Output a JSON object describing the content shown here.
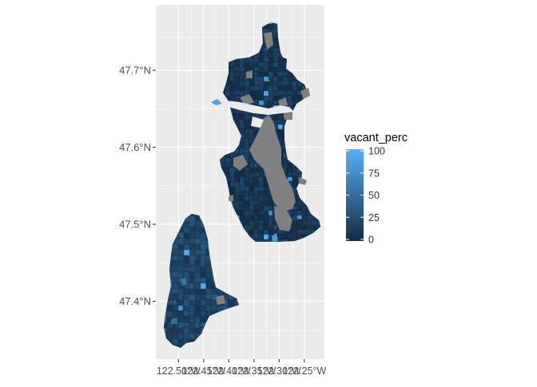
{
  "map": {
    "axes": {
      "x_tick_labels": [
        "122.50°W",
        "122.45°W",
        "122.40°W",
        "122.35°W",
        "122.30°W",
        "122.25°W"
      ],
      "x_tick_values": [
        -122.5,
        -122.45,
        -122.4,
        -122.35,
        -122.3,
        -122.25
      ],
      "y_tick_labels": [
        "47.4°N",
        "47.5°N",
        "47.6°N",
        "47.7°N"
      ],
      "y_tick_values": [
        47.4,
        47.5,
        47.6,
        47.7
      ],
      "xlim": [
        -122.545,
        -122.21
      ],
      "ylim": [
        47.325,
        47.785
      ],
      "grid": true
    },
    "legend": {
      "title": "vacant_perc",
      "breaks": [
        0,
        25,
        50,
        75,
        100
      ],
      "break_labels": [
        "0",
        "25",
        "50",
        "75",
        "100"
      ],
      "limits": [
        0,
        100
      ],
      "position": "right",
      "gradient": {
        "low": "#132B43",
        "high": "#56B1F7"
      }
    },
    "colors": {
      "panel_background": "#EBEBEB",
      "grid_line": "#FFFFFF",
      "na_fill": "#808080",
      "tick_label": "#4D4D4D",
      "legend_title": "#000000"
    }
  }
}
